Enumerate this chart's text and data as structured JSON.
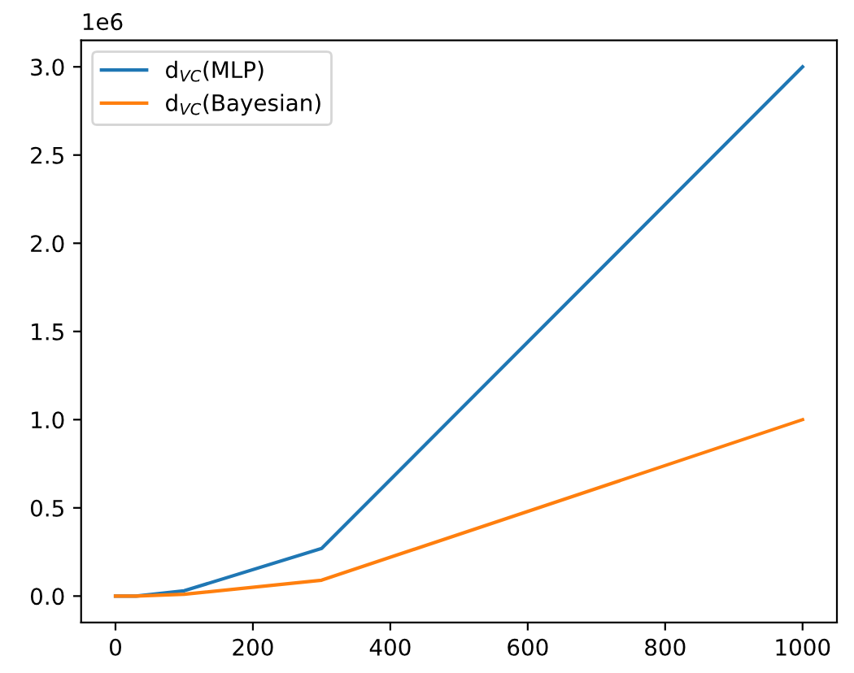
{
  "chart_data": {
    "type": "line",
    "x": [
      0,
      10,
      30,
      100,
      300,
      1000
    ],
    "series": [
      {
        "name": "d$_{VC}$(MLP)",
        "color": "#1f77b4",
        "values": [
          0,
          0,
          0,
          0.03,
          0.27,
          3.0
        ]
      },
      {
        "name": "d$_{VC}$(Bayesian)",
        "color": "#ff7f0e",
        "values": [
          0,
          0,
          0,
          0.01,
          0.09,
          1.0
        ]
      }
    ],
    "xlim": [
      -50,
      1050
    ],
    "xticks": [
      0,
      200,
      400,
      600,
      800,
      1000
    ],
    "ylim": [
      -0.15,
      3.15
    ],
    "yticks": [
      {
        "value": 0,
        "label": "0.0"
      },
      0.5,
      {
        "value": 1,
        "label": "1.0"
      },
      1.5,
      {
        "value": 2,
        "label": "2.0"
      },
      2.5,
      {
        "value": 3,
        "label": "3.0"
      }
    ],
    "annotations": [
      "1e6"
    ],
    "legend": "top left",
    "grid": false,
    "marker": "none",
    "line_style": "solid"
  }
}
